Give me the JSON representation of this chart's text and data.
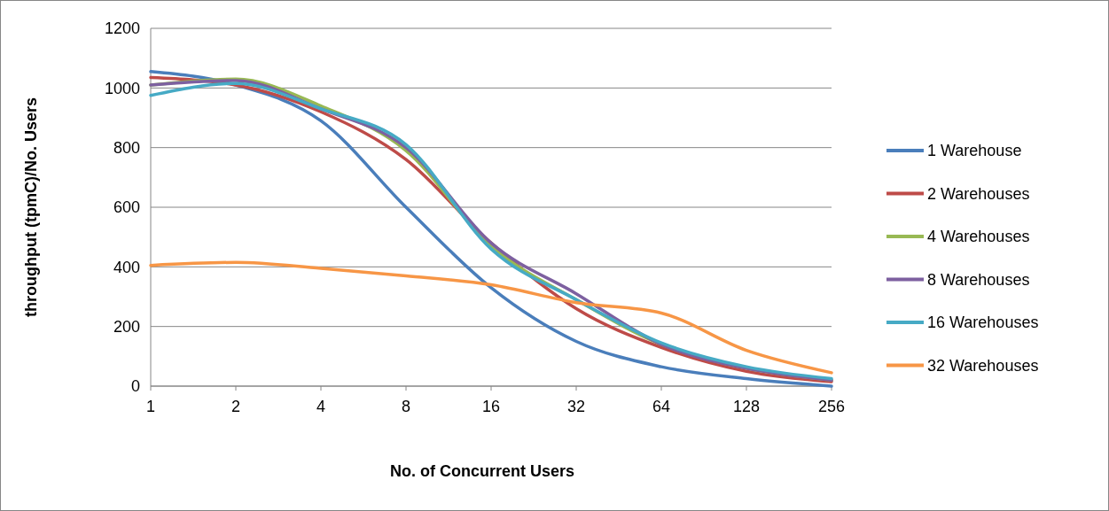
{
  "chart_data": {
    "type": "line",
    "xlabel": "No. of Concurrent Users",
    "ylabel": "throughput (tpmC)/No. Users",
    "categories": [
      "1",
      "2",
      "4",
      "8",
      "16",
      "32",
      "64",
      "128",
      "256"
    ],
    "series": [
      {
        "name": "1 Warehouse",
        "color": "#4a7ebb",
        "values": [
          1055,
          1010,
          890,
          600,
          330,
          150,
          65,
          25,
          0
        ]
      },
      {
        "name": "2 Warehouses",
        "color": "#be4b48",
        "values": [
          1035,
          1010,
          920,
          760,
          480,
          260,
          130,
          50,
          15
        ]
      },
      {
        "name": "4 Warehouses",
        "color": "#98b954",
        "values": [
          1010,
          1030,
          940,
          790,
          470,
          290,
          140,
          60,
          20
        ]
      },
      {
        "name": "8 Warehouses",
        "color": "#7d60a0",
        "values": [
          1010,
          1025,
          930,
          800,
          480,
          310,
          140,
          60,
          20
        ]
      },
      {
        "name": "16 Warehouses",
        "color": "#46aac5",
        "values": [
          975,
          1015,
          930,
          810,
          460,
          290,
          145,
          65,
          25
        ]
      },
      {
        "name": "32 Warehouses",
        "color": "#f79646",
        "values": [
          405,
          415,
          395,
          370,
          340,
          280,
          245,
          120,
          45
        ]
      }
    ],
    "ylim": [
      0,
      1200
    ],
    "yticks": [
      0,
      200,
      400,
      600,
      800,
      1000,
      1200
    ],
    "grid": "y",
    "legend": "right",
    "marker": "none",
    "line_style": "solid"
  }
}
